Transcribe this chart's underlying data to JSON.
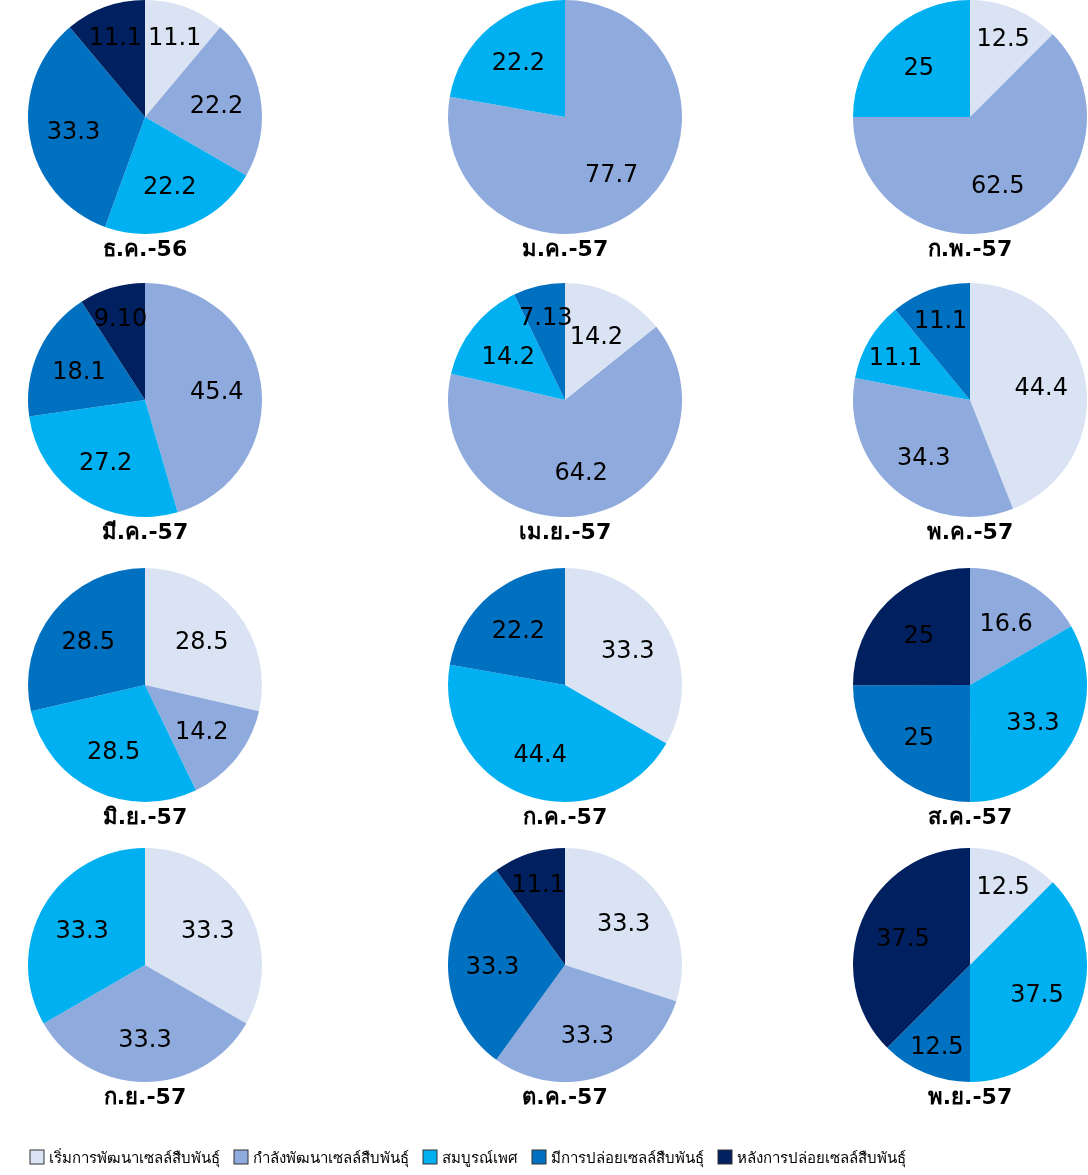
{
  "chart_data": [
    {
      "type": "pie",
      "title": "ธ.ค.-56",
      "categories": [
        null,
        null,
        null,
        null,
        null
      ],
      "colors": [
        "#dae3f3",
        "#8faadc",
        "#00b0f0",
        "#0070c0",
        "#002060"
      ],
      "values": [
        11.1,
        22.2,
        22.2,
        33.3,
        11.1
      ],
      "value_labels": [
        "11.1",
        "22.2",
        "22.2",
        "33.3",
        "11.1"
      ]
    },
    {
      "type": "pie",
      "title": "ม.ค.-57",
      "categories": [
        null,
        null,
        null,
        null,
        null
      ],
      "colors": [
        null,
        "#8faadc",
        "#00b0f0",
        null,
        null
      ],
      "values": [
        null,
        77.7,
        22.2,
        null,
        null
      ],
      "value_labels": [
        null,
        "77.7",
        "22.2",
        null,
        null
      ]
    },
    {
      "type": "pie",
      "title": "ก.พ.-57",
      "categories": [
        null,
        null,
        null,
        null,
        null
      ],
      "colors": [
        "#dae3f3",
        "#8faadc",
        "#00b0f0",
        null,
        null
      ],
      "values": [
        12.5,
        62.5,
        25,
        null,
        null
      ],
      "value_labels": [
        "12.5",
        "62.5",
        "25",
        null,
        null
      ]
    },
    {
      "type": "pie",
      "title": "มี.ค.-57",
      "categories": [
        null,
        null,
        null,
        null,
        null
      ],
      "colors": [
        null,
        "#8faadc",
        "#00b0f0",
        "#0070c0",
        "#002060"
      ],
      "values": [
        null,
        45.4,
        27.2,
        18.1,
        9.1
      ],
      "value_labels": [
        null,
        "45.4",
        "27.2",
        "18.1",
        "9.10"
      ]
    },
    {
      "type": "pie",
      "title": "เม.ย.-57",
      "categories": [
        null,
        null,
        null,
        null,
        null
      ],
      "colors": [
        "#dae3f3",
        "#8faadc",
        "#00b0f0",
        "#0070c0",
        null
      ],
      "values": [
        14.2,
        64.2,
        14.2,
        7.13,
        null
      ],
      "value_labels": [
        "14.2",
        "64.2",
        "14.2",
        "7.13",
        null
      ]
    },
    {
      "type": "pie",
      "title": "พ.ค.-57",
      "categories": [
        null,
        null,
        null,
        null,
        null
      ],
      "colors": [
        "#dae3f3",
        "#8faadc",
        "#00b0f0",
        "#0070c0",
        null
      ],
      "values": [
        44.4,
        34.3,
        11.1,
        11.1,
        null
      ],
      "value_labels": [
        "44.4",
        "34.3",
        "11.1",
        "11.1",
        null
      ]
    },
    {
      "type": "pie",
      "title": "มิ.ย.-57",
      "categories": [
        null,
        null,
        null,
        null,
        null
      ],
      "colors": [
        "#dae3f3",
        "#8faadc",
        "#00b0f0",
        "#0070c0",
        null
      ],
      "values": [
        28.5,
        14.2,
        28.5,
        28.5,
        null
      ],
      "value_labels": [
        "28.5",
        "14.2",
        "28.5",
        "28.5",
        null
      ]
    },
    {
      "type": "pie",
      "title": "ก.ค.-57",
      "categories": [
        null,
        null,
        null,
        null,
        null
      ],
      "colors": [
        "#dae3f3",
        null,
        "#00b0f0",
        "#0070c0",
        null
      ],
      "values": [
        33.3,
        null,
        44.4,
        22.2,
        null
      ],
      "value_labels": [
        "33.3",
        null,
        "44.4",
        "22.2",
        null
      ]
    },
    {
      "type": "pie",
      "title": "ส.ค.-57",
      "categories": [
        null,
        null,
        null,
        null,
        null
      ],
      "colors": [
        null,
        "#8faadc",
        "#00b0f0",
        "#0070c0",
        "#002060"
      ],
      "values": [
        null,
        16.6,
        33.3,
        25,
        25
      ],
      "value_labels": [
        null,
        "16.6",
        "33.3",
        "25",
        "25"
      ]
    },
    {
      "type": "pie",
      "title": "ก.ย.-57",
      "categories": [
        null,
        null,
        null,
        null,
        null
      ],
      "colors": [
        "#dae3f3",
        "#8faadc",
        "#00b0f0",
        null,
        null
      ],
      "values": [
        33.3,
        33.3,
        33.3,
        null,
        null
      ],
      "value_labels": [
        "33.3",
        "33.3",
        "33.3",
        null,
        null
      ]
    },
    {
      "type": "pie",
      "title": "ต.ค.-57",
      "categories": [
        null,
        null,
        null,
        null,
        null
      ],
      "colors": [
        "#dae3f3",
        "#8faadc",
        null,
        "#0070c0",
        "#002060"
      ],
      "values": [
        33.3,
        33.3,
        null,
        33.3,
        11.1
      ],
      "value_labels": [
        "33.3",
        "33.3",
        null,
        "33.3",
        "11.1"
      ]
    },
    {
      "type": "pie",
      "title": "พ.ย.-57",
      "categories": [
        "เริ่มการพัฒนาเซลล์สืบพันธุ์",
        "กำลังพัฒนาเซลล์สืบพันธุ์",
        "สมบูรณ์เพศ",
        "มีการปล่อยเซลล์สืบพันธุ์",
        "หลังการปล่อยเซลล์สืบพันธุ์"
      ],
      "colors": [
        "#dae3f3",
        "#8faadc",
        "#00b0f0",
        "#0070c0",
        "#002060"
      ],
      "values": [
        12.5,
        null,
        37.5,
        12.5,
        37.5
      ],
      "value_labels": [
        "12.5",
        null,
        "37.5",
        "12.5",
        "37.5"
      ],
      "legend": "bottom"
    }
  ]
}
